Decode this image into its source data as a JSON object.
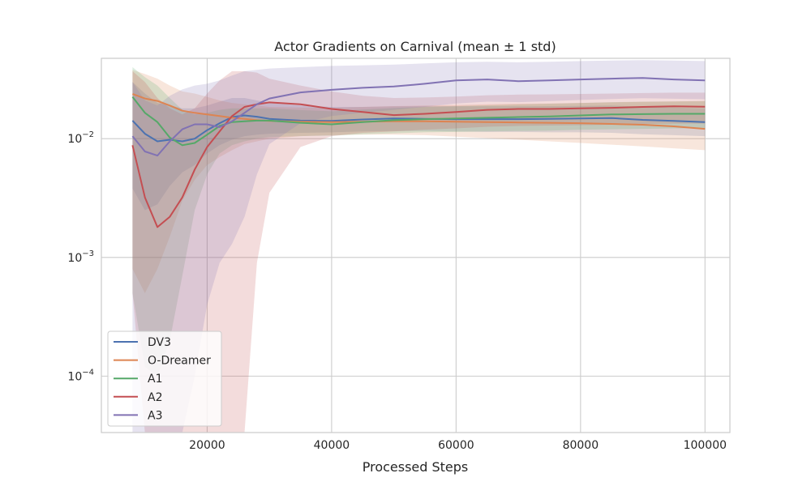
{
  "chart_data": {
    "type": "line",
    "title": "Actor Gradients on Carnival (mean ± 1 std)",
    "xlabel": "Processed Steps",
    "ylabel": "",
    "y_scale": "log",
    "xlim": [
      3000,
      104000
    ],
    "ylim": [
      3.35e-05,
      0.0475
    ],
    "x_ticks": [
      20000,
      40000,
      60000,
      80000,
      100000
    ],
    "x_tick_labels": [
      "20000",
      "40000",
      "60000",
      "80000",
      "100000"
    ],
    "y_ticks": [
      0.0001,
      0.001,
      0.01
    ],
    "y_tick_labels": [
      {
        "base": "10",
        "exp": "−4"
      },
      {
        "base": "10",
        "exp": "−3"
      },
      {
        "base": "10",
        "exp": "−2"
      }
    ],
    "grid": true,
    "legend_position": "lower-left",
    "x": [
      8000,
      10000,
      12000,
      14000,
      16000,
      18000,
      20000,
      22000,
      24000,
      26000,
      28000,
      30000,
      35000,
      40000,
      45000,
      50000,
      55000,
      60000,
      65000,
      70000,
      75000,
      80000,
      85000,
      90000,
      95000,
      100000
    ],
    "series": [
      {
        "name": "DV3",
        "color": "#4c72b0",
        "mean": [
          0.0142,
          0.011,
          0.0095,
          0.0098,
          0.0095,
          0.01,
          0.0118,
          0.0135,
          0.0152,
          0.0157,
          0.0153,
          0.0147,
          0.0142,
          0.0141,
          0.0145,
          0.0148,
          0.0147,
          0.0146,
          0.0146,
          0.0146,
          0.0147,
          0.0148,
          0.0149,
          0.0144,
          0.0141,
          0.0138
        ],
        "lower": [
          0.0038,
          0.0025,
          0.0028,
          0.004,
          0.0052,
          0.006,
          0.0075,
          0.0088,
          0.0098,
          0.0105,
          0.0108,
          0.011,
          0.0112,
          0.0113,
          0.0115,
          0.0116,
          0.0116,
          0.0115,
          0.0114,
          0.0114,
          0.0113,
          0.0113,
          0.0112,
          0.0109,
          0.0107,
          0.0105
        ],
        "upper": [
          0.03,
          0.024,
          0.02,
          0.019,
          0.018,
          0.018,
          0.019,
          0.0205,
          0.022,
          0.022,
          0.021,
          0.02,
          0.019,
          0.0185,
          0.0185,
          0.0187,
          0.0188,
          0.0187,
          0.0187,
          0.0187,
          0.0188,
          0.0189,
          0.019,
          0.0186,
          0.0183,
          0.018
        ]
      },
      {
        "name": "O-Dreamer",
        "color": "#dd8452",
        "mean": [
          0.0238,
          0.0218,
          0.0208,
          0.019,
          0.0172,
          0.0165,
          0.016,
          0.0155,
          0.015,
          0.0147,
          0.0143,
          0.0141,
          0.0139,
          0.0138,
          0.0139,
          0.014,
          0.014,
          0.0139,
          0.0138,
          0.0137,
          0.0136,
          0.0135,
          0.0133,
          0.0131,
          0.0127,
          0.0121
        ],
        "lower": [
          0.0008,
          0.0005,
          0.0008,
          0.0015,
          0.003,
          0.0045,
          0.006,
          0.007,
          0.008,
          0.009,
          0.0095,
          0.01,
          0.0105,
          0.0107,
          0.0108,
          0.0108,
          0.0107,
          0.0104,
          0.0101,
          0.0098,
          0.0095,
          0.0092,
          0.0089,
          0.0086,
          0.0083,
          0.008
        ],
        "upper": [
          0.038,
          0.035,
          0.032,
          0.028,
          0.025,
          0.024,
          0.0225,
          0.021,
          0.02,
          0.0195,
          0.019,
          0.0185,
          0.0183,
          0.0182,
          0.0185,
          0.0188,
          0.019,
          0.0192,
          0.0195,
          0.0197,
          0.0198,
          0.02,
          0.0202,
          0.0204,
          0.0206,
          0.0208
        ]
      },
      {
        "name": "A1",
        "color": "#55a868",
        "mean": [
          0.0225,
          0.0165,
          0.0138,
          0.0102,
          0.0088,
          0.0092,
          0.0108,
          0.0128,
          0.0138,
          0.014,
          0.0142,
          0.0142,
          0.0136,
          0.0132,
          0.0138,
          0.0143,
          0.0146,
          0.0148,
          0.015,
          0.0152,
          0.0154,
          0.0157,
          0.016,
          0.0161,
          0.0162,
          0.0162
        ],
        "lower": [
          0.0005,
          0.00012,
          0.0001,
          0.0002,
          0.0007,
          0.0025,
          0.005,
          0.0075,
          0.0088,
          0.0095,
          0.01,
          0.0103,
          0.0105,
          0.0106,
          0.0109,
          0.0111,
          0.0113,
          0.0114,
          0.0115,
          0.0116,
          0.0117,
          0.0119,
          0.012,
          0.0121,
          0.0122,
          0.0122
        ],
        "upper": [
          0.04,
          0.033,
          0.028,
          0.022,
          0.0175,
          0.016,
          0.0165,
          0.0175,
          0.018,
          0.018,
          0.018,
          0.018,
          0.0174,
          0.017,
          0.0176,
          0.0181,
          0.0185,
          0.0188,
          0.0191,
          0.0194,
          0.0197,
          0.02,
          0.0203,
          0.0205,
          0.0206,
          0.0207
        ]
      },
      {
        "name": "A2",
        "color": "#c44e52",
        "mean": [
          0.0088,
          0.0032,
          0.0018,
          0.0022,
          0.0032,
          0.0055,
          0.0085,
          0.0115,
          0.0155,
          0.0185,
          0.0195,
          0.0202,
          0.0195,
          0.0178,
          0.0168,
          0.0158,
          0.0162,
          0.0168,
          0.0175,
          0.0178,
          0.0178,
          0.018,
          0.0182,
          0.0185,
          0.0187,
          0.0186
        ],
        "lower": [
          0.0005,
          3e-05,
          3e-05,
          3e-05,
          3e-05,
          3e-05,
          3e-05,
          3e-05,
          3e-05,
          3e-05,
          0.0009,
          0.0035,
          0.0085,
          0.0105,
          0.0112,
          0.0115,
          0.0119,
          0.0122,
          0.0126,
          0.0128,
          0.0129,
          0.013,
          0.0131,
          0.0133,
          0.0134,
          0.0134
        ],
        "upper": [
          0.037,
          0.03,
          0.022,
          0.018,
          0.016,
          0.018,
          0.024,
          0.031,
          0.037,
          0.037,
          0.036,
          0.032,
          0.028,
          0.025,
          0.023,
          0.022,
          0.0222,
          0.0226,
          0.0232,
          0.0235,
          0.0236,
          0.0238,
          0.024,
          0.0242,
          0.0244,
          0.0244
        ]
      },
      {
        "name": "A3",
        "color": "#8172b3",
        "mean": [
          0.0105,
          0.0078,
          0.0072,
          0.0095,
          0.012,
          0.0132,
          0.0132,
          0.0125,
          0.014,
          0.0165,
          0.0195,
          0.0218,
          0.0245,
          0.0258,
          0.0268,
          0.0275,
          0.029,
          0.031,
          0.0315,
          0.0305,
          0.031,
          0.0315,
          0.032,
          0.0325,
          0.0315,
          0.031
        ],
        "lower": [
          3e-05,
          3e-05,
          3e-05,
          3e-05,
          3e-05,
          0.0001,
          0.0004,
          0.0009,
          0.0013,
          0.0022,
          0.005,
          0.009,
          0.0135,
          0.0155,
          0.0165,
          0.0175,
          0.0185,
          0.0198,
          0.0205,
          0.0203,
          0.0207,
          0.0212,
          0.0216,
          0.0219,
          0.0217,
          0.0215
        ],
        "upper": [
          0.03,
          0.021,
          0.019,
          0.023,
          0.026,
          0.028,
          0.029,
          0.031,
          0.034,
          0.037,
          0.038,
          0.039,
          0.04,
          0.041,
          0.0415,
          0.042,
          0.043,
          0.044,
          0.0445,
          0.044,
          0.0445,
          0.045,
          0.0455,
          0.0458,
          0.0455,
          0.045
        ]
      }
    ]
  }
}
